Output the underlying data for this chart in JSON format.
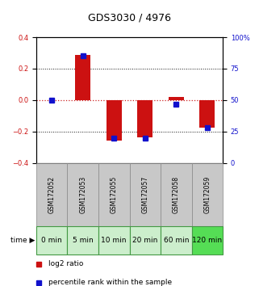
{
  "title": "GDS3030 / 4976",
  "samples": [
    "GSM172052",
    "GSM172053",
    "GSM172055",
    "GSM172057",
    "GSM172058",
    "GSM172059"
  ],
  "time_labels": [
    "0 min",
    "5 min",
    "10 min",
    "20 min",
    "60 min",
    "120 min"
  ],
  "log2_ratio": [
    0.0,
    0.285,
    -0.255,
    -0.235,
    0.02,
    -0.175
  ],
  "percentile_rank": [
    50,
    85,
    20,
    20,
    47,
    28
  ],
  "ylim_left": [
    -0.4,
    0.4
  ],
  "ylim_right": [
    0,
    100
  ],
  "yticks_left": [
    -0.4,
    -0.2,
    0.0,
    0.2,
    0.4
  ],
  "yticks_right": [
    0,
    25,
    50,
    75,
    100
  ],
  "bar_color_red": "#cc1111",
  "bar_color_blue": "#1111cc",
  "hline_color": "#cc2222",
  "dotted_color": "#111111",
  "background_plot": "#ffffff",
  "background_gsm": "#c8c8c8",
  "background_time_light": "#cceecc",
  "background_time_dark": "#55dd55",
  "time_border_color": "#449944",
  "gsm_border_color": "#888888",
  "bar_width": 0.5,
  "title_fontsize": 9,
  "tick_fontsize": 6,
  "legend_fontsize": 6.5,
  "time_fontsize": 6.5,
  "gsm_fontsize": 5.5
}
